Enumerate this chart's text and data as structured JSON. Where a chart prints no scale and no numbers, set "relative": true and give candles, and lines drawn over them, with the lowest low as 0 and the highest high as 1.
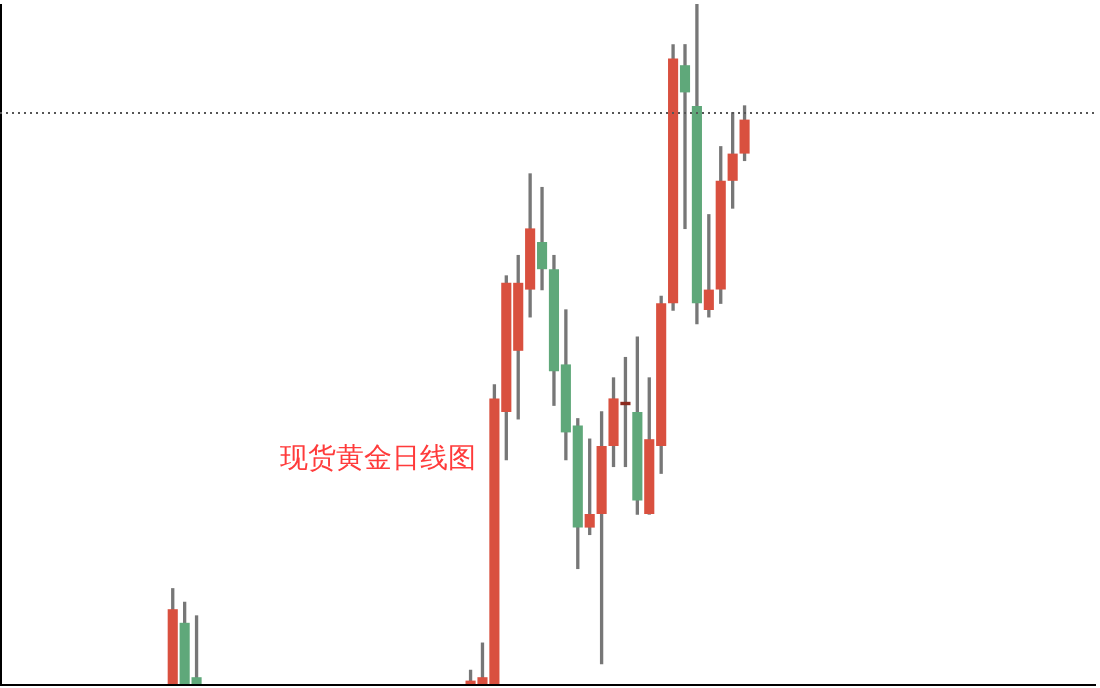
{
  "chart_data": {
    "type": "candlestick",
    "relative": true,
    "categories": [
      null,
      null,
      null,
      null,
      null,
      null,
      null,
      null,
      null,
      null,
      null,
      null,
      null,
      null,
      null,
      null,
      null,
      null,
      null,
      null,
      null,
      null,
      null,
      null,
      null,
      null,
      null,
      null,
      null,
      null,
      null,
      null,
      null,
      null,
      null,
      null,
      null,
      null,
      null,
      null,
      null,
      null,
      null,
      null,
      null,
      null,
      null,
      null,
      null,
      null,
      null,
      null,
      null,
      null,
      null,
      null,
      null,
      null,
      null,
      null,
      null,
      null,
      null,
      null,
      null,
      null,
      null,
      null,
      null,
      null,
      null,
      null,
      null,
      null,
      null,
      null,
      null,
      null,
      null,
      null,
      null,
      null,
      null,
      null,
      null,
      null,
      null,
      null,
      null,
      null,
      null,
      null
    ],
    "ohlc": [
      null,
      null,
      null,
      null,
      null,
      null,
      null,
      null,
      null,
      null,
      null,
      null,
      null,
      null,
      [
        0,
        0.14,
        0,
        0.11
      ],
      [
        0.09,
        0.12,
        0,
        0
      ],
      [
        0.01,
        0.1,
        0,
        0
      ],
      null,
      null,
      null,
      null,
      null,
      null,
      null,
      null,
      null,
      null,
      null,
      null,
      null,
      null,
      null,
      null,
      null,
      null,
      null,
      null,
      null,
      null,
      [
        0,
        0.02,
        0,
        0.005
      ],
      [
        0,
        0.06,
        0,
        0.01
      ],
      [
        0,
        0.44,
        0,
        0.42
      ],
      [
        0.4,
        0.6,
        0.33,
        0.59
      ],
      [
        0.49,
        0.63,
        0.39,
        0.59
      ],
      [
        0.58,
        0.75,
        0.54,
        0.67
      ],
      [
        0.65,
        0.73,
        0.58,
        0.61
      ],
      [
        0.61,
        0.63,
        0.41,
        0.46
      ],
      [
        0.47,
        0.55,
        0.33,
        0.37
      ],
      [
        0.38,
        0.39,
        0.17,
        0.23
      ],
      [
        0.23,
        0.36,
        0.22,
        0.25
      ],
      [
        0.25,
        0.4,
        0.03,
        0.35
      ],
      [
        0.35,
        0.45,
        0.32,
        0.42
      ],
      [
        0.41,
        0.48,
        0.32,
        0.415
      ],
      [
        0.4,
        0.51,
        0.25,
        0.27
      ],
      [
        0.25,
        0.45,
        0.25,
        0.36
      ],
      [
        0.35,
        0.57,
        0.31,
        0.56
      ],
      [
        0.56,
        0.94,
        0.55,
        0.92
      ],
      [
        0.91,
        0.94,
        0.67,
        0.87
      ],
      [
        0.85,
        1,
        0.53,
        0.56
      ],
      [
        0.55,
        0.69,
        0.54,
        0.58
      ],
      [
        0.58,
        0.79,
        0.56,
        0.74
      ],
      [
        0.74,
        0.84,
        0.7,
        0.78
      ],
      [
        0.78,
        0.85,
        0.77,
        0.83
      ],
      null,
      null,
      null,
      null,
      null,
      null,
      null,
      null,
      null,
      null,
      null,
      null,
      null,
      null,
      null,
      null,
      null,
      null,
      null,
      null,
      null,
      null,
      null,
      null,
      null,
      null,
      null,
      null,
      null
    ],
    "colors": [
      null,
      null,
      null,
      null,
      null,
      null,
      null,
      null,
      null,
      null,
      null,
      null,
      null,
      null,
      "#d9503f",
      "#5fa87a",
      "#5fa87a",
      null,
      null,
      null,
      null,
      null,
      null,
      null,
      null,
      null,
      null,
      null,
      null,
      null,
      null,
      null,
      null,
      null,
      null,
      null,
      null,
      null,
      null,
      "#d9503f",
      "#d9503f",
      "#d9503f",
      "#d9503f",
      "#d9503f",
      "#d9503f",
      "#5fa87a",
      "#5fa87a",
      "#5fa87a",
      "#5fa87a",
      "#d9503f",
      "#d9503f",
      "#d9503f",
      "#8b2a1e",
      "#5fa87a",
      "#d9503f",
      "#d9503f",
      "#d9503f",
      "#5fa87a",
      "#5fa87a",
      "#d9503f",
      "#d9503f",
      "#d9503f",
      "#d9503f",
      null,
      null,
      null,
      null,
      null,
      null,
      null,
      null,
      null,
      null,
      null,
      null,
      null,
      null,
      null,
      null,
      null,
      null,
      null,
      null,
      null,
      null,
      null,
      null,
      null,
      null,
      null,
      null,
      null
    ],
    "ref_lines": [
      {
        "axis": "y",
        "value": 0.84,
        "line_style": "dotted",
        "color": "#555555"
      }
    ],
    "annotations": [
      "现货黄金日线图"
    ]
  }
}
